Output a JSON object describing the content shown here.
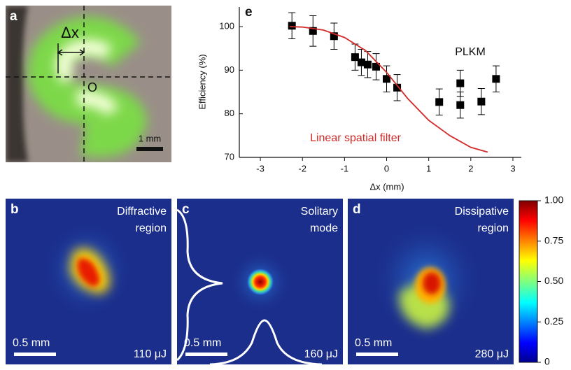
{
  "panel_a": {
    "label": "a",
    "delta_label": "Δx",
    "origin_label": "O",
    "scale_bar": "1 mm"
  },
  "chart_data": {
    "type": "scatter",
    "panel_label": "e",
    "x_label": "Δx (mm)",
    "y_label": "Efficiency (%)",
    "xlim": [
      -3.5,
      3.2
    ],
    "ylim": [
      70,
      104.5
    ],
    "xticks": [
      -3,
      -2,
      -1,
      0,
      1,
      2,
      3
    ],
    "yticks": [
      70,
      80,
      90,
      100
    ],
    "series": [
      {
        "name": "PLKM",
        "type": "scatter",
        "color": "#000000",
        "x": [
          -2.25,
          -1.75,
          -1.25,
          -0.75,
          -0.6,
          -0.45,
          -0.25,
          0,
          0.25,
          1.25,
          1.75,
          1.75,
          2.25,
          2.6
        ],
        "values": [
          100.2,
          99,
          97.8,
          93,
          91.8,
          91.3,
          90.8,
          88,
          86,
          82.7,
          87,
          82,
          82.8,
          88
        ],
        "errors": [
          3,
          3.5,
          3,
          3,
          3,
          3,
          3,
          3,
          3,
          3,
          3,
          3,
          3,
          3
        ]
      },
      {
        "name": "Linear spatial filter",
        "type": "line",
        "color": "#d42a2a",
        "x": [
          -2.3,
          -2,
          -1.5,
          -1,
          -0.5,
          0,
          0.5,
          1,
          1.5,
          2,
          2.4
        ],
        "values": [
          100,
          99.9,
          99.2,
          97.5,
          94.5,
          89.5,
          83.5,
          78.5,
          75,
          72.3,
          71.2
        ]
      }
    ]
  },
  "panels": [
    {
      "label": "b",
      "title_lines": [
        "Diffractive",
        "region"
      ],
      "scale_bar": "0.5 mm",
      "energy": "110 μJ"
    },
    {
      "label": "c",
      "title_lines": [
        "Solitary",
        "mode"
      ],
      "scale_bar": "0.5 mm",
      "energy": "160 μJ"
    },
    {
      "label": "d",
      "title_lines": [
        "Dissipative",
        "region"
      ],
      "scale_bar": "0.5 mm",
      "energy": "280 μJ"
    }
  ],
  "colorbar": {
    "lim": [
      0,
      1
    ],
    "ticks": [
      0,
      0.25,
      {
        "value": 0.5,
        "label": "0.50"
      },
      0.75,
      {
        "value": 1,
        "label": "1.00"
      }
    ]
  }
}
